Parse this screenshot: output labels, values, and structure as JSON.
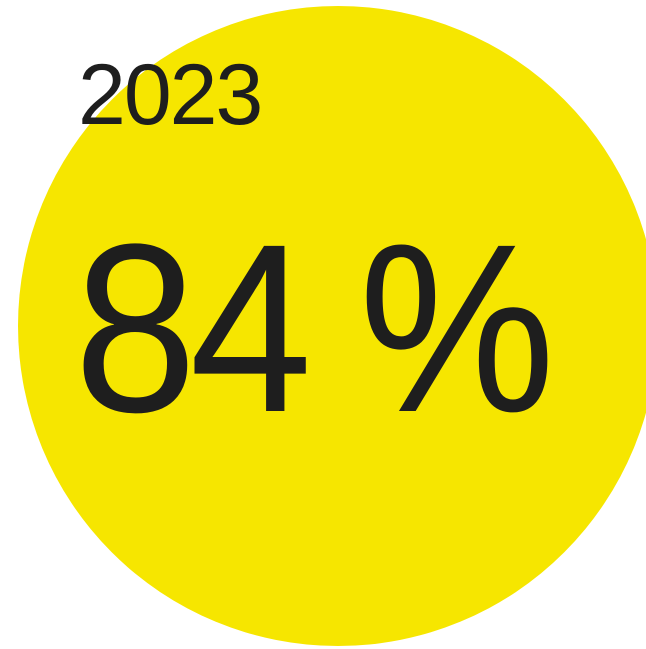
{
  "figure": {
    "year_label": "2023",
    "percentage_label": "84 %",
    "value_percent": 84,
    "colors": {
      "circle_fill": "#f6e600",
      "text": "#1e1e1e",
      "background": "#ffffff"
    }
  }
}
